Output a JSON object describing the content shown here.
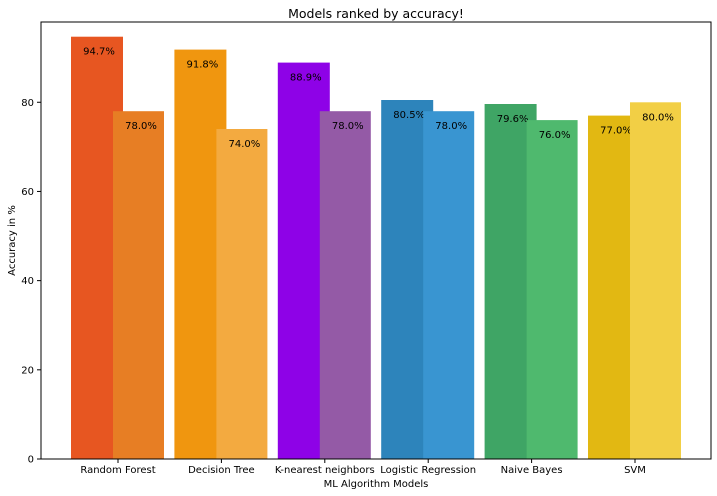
{
  "chart_data": {
    "type": "bar",
    "title": "Models ranked by accuracy!",
    "xlabel": "ML Algorithm Models",
    "ylabel": "Accuracy in %",
    "ylim": [
      0,
      98
    ],
    "yticks": [
      0,
      20,
      40,
      60,
      80
    ],
    "grid": false,
    "categories": [
      "Random Forest",
      "Decision Tree",
      "K-nearest neighbors",
      "Logistic Regression",
      "Naive Bayes",
      "SVM"
    ],
    "series": [
      {
        "values": [
          94.7,
          91.8,
          88.9,
          80.5,
          79.6,
          77.0
        ],
        "labels": [
          "94.7%",
          "91.8%",
          "88.9%",
          "80.5%",
          "79.6%",
          "77.0%"
        ],
        "colors": [
          "#e75621",
          "#f0960f",
          "#8e02e7",
          "#2d84bb",
          "#3fa565",
          "#e2b812"
        ]
      },
      {
        "values": [
          78.0,
          74.0,
          78.0,
          78.0,
          76.0,
          80.0
        ],
        "labels": [
          "78.0%",
          "74.0%",
          "78.0%",
          "78.0%",
          "76.0%",
          "80.0%"
        ],
        "colors": [
          "#e77e24",
          "#f3aa40",
          "#945aa6",
          "#3995d1",
          "#4fb96e",
          "#f2cf45"
        ]
      }
    ]
  }
}
